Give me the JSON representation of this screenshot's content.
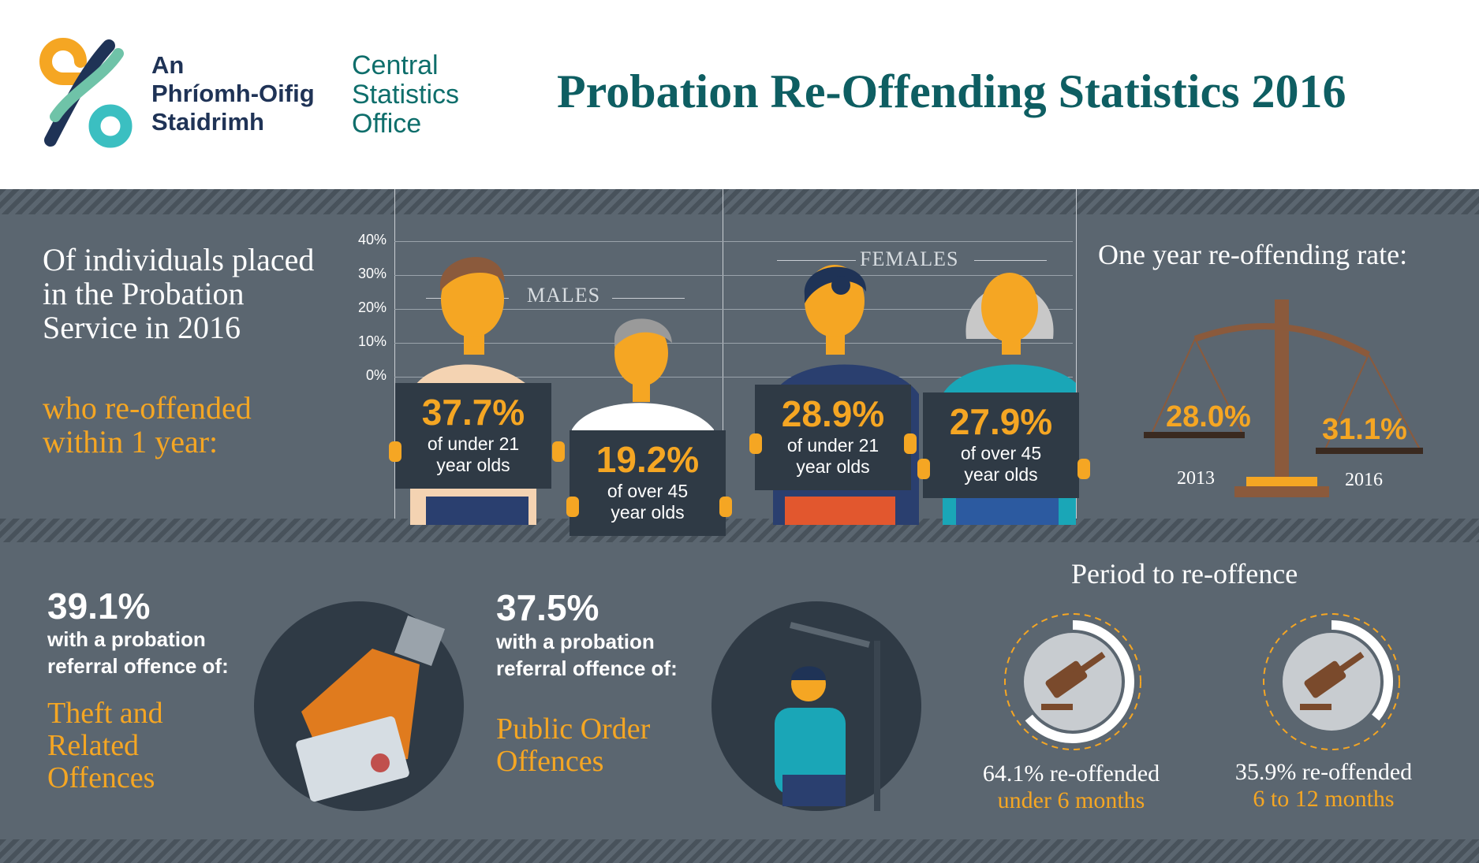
{
  "header": {
    "logo_irish": [
      "An",
      "Phríomh-Oifig",
      "Staidrimh"
    ],
    "logo_english": [
      "Central",
      "Statistics",
      "Office"
    ],
    "title": "Probation Re-Offending Statistics 2016"
  },
  "intro": {
    "text": "Of individuals placed in the Probation Service in 2016",
    "highlight": "who re-offended within 1 year:"
  },
  "lineup": {
    "ticks": [
      "40%",
      "30%",
      "20%",
      "10%",
      "0%"
    ],
    "males_label": "MALES",
    "females_label": "FEMALES",
    "signs": [
      {
        "pct": "37.7%",
        "line1": "of under 21",
        "line2": "year olds"
      },
      {
        "pct": "19.2%",
        "line1": "of over 45",
        "line2": "year olds"
      },
      {
        "pct": "28.9%",
        "line1": "of under 21",
        "line2": "year olds"
      },
      {
        "pct": "27.9%",
        "line1": "of over 45",
        "line2": "year olds"
      }
    ]
  },
  "rate": {
    "title": "One year re-offending rate:",
    "left_value": "28.0%",
    "right_value": "31.1%",
    "left_year": "2013",
    "right_year": "2016"
  },
  "offences": [
    {
      "pct": "39.1%",
      "line1": "with a probation",
      "line2": "referral offence of:",
      "name": [
        "Theft and",
        "Related",
        "Offences"
      ],
      "icon": "theft-hand-icon"
    },
    {
      "pct": "37.5%",
      "line1": "with a probation",
      "line2": "referral offence of:",
      "name": [
        "Public Order",
        "Offences"
      ],
      "icon": "public-order-icon"
    }
  ],
  "period": {
    "title": "Period to re-offence",
    "items": [
      {
        "value": "64.1% re-offended",
        "label": "under 6 months",
        "fraction": 0.641
      },
      {
        "value": "35.9% re-offended",
        "label": "6 to 12 months",
        "fraction": 0.359
      }
    ]
  },
  "colors": {
    "orange": "#f5a623",
    "teal": "#0e5e62",
    "slate": "#5b6670",
    "navy": "#2f3a45"
  }
}
